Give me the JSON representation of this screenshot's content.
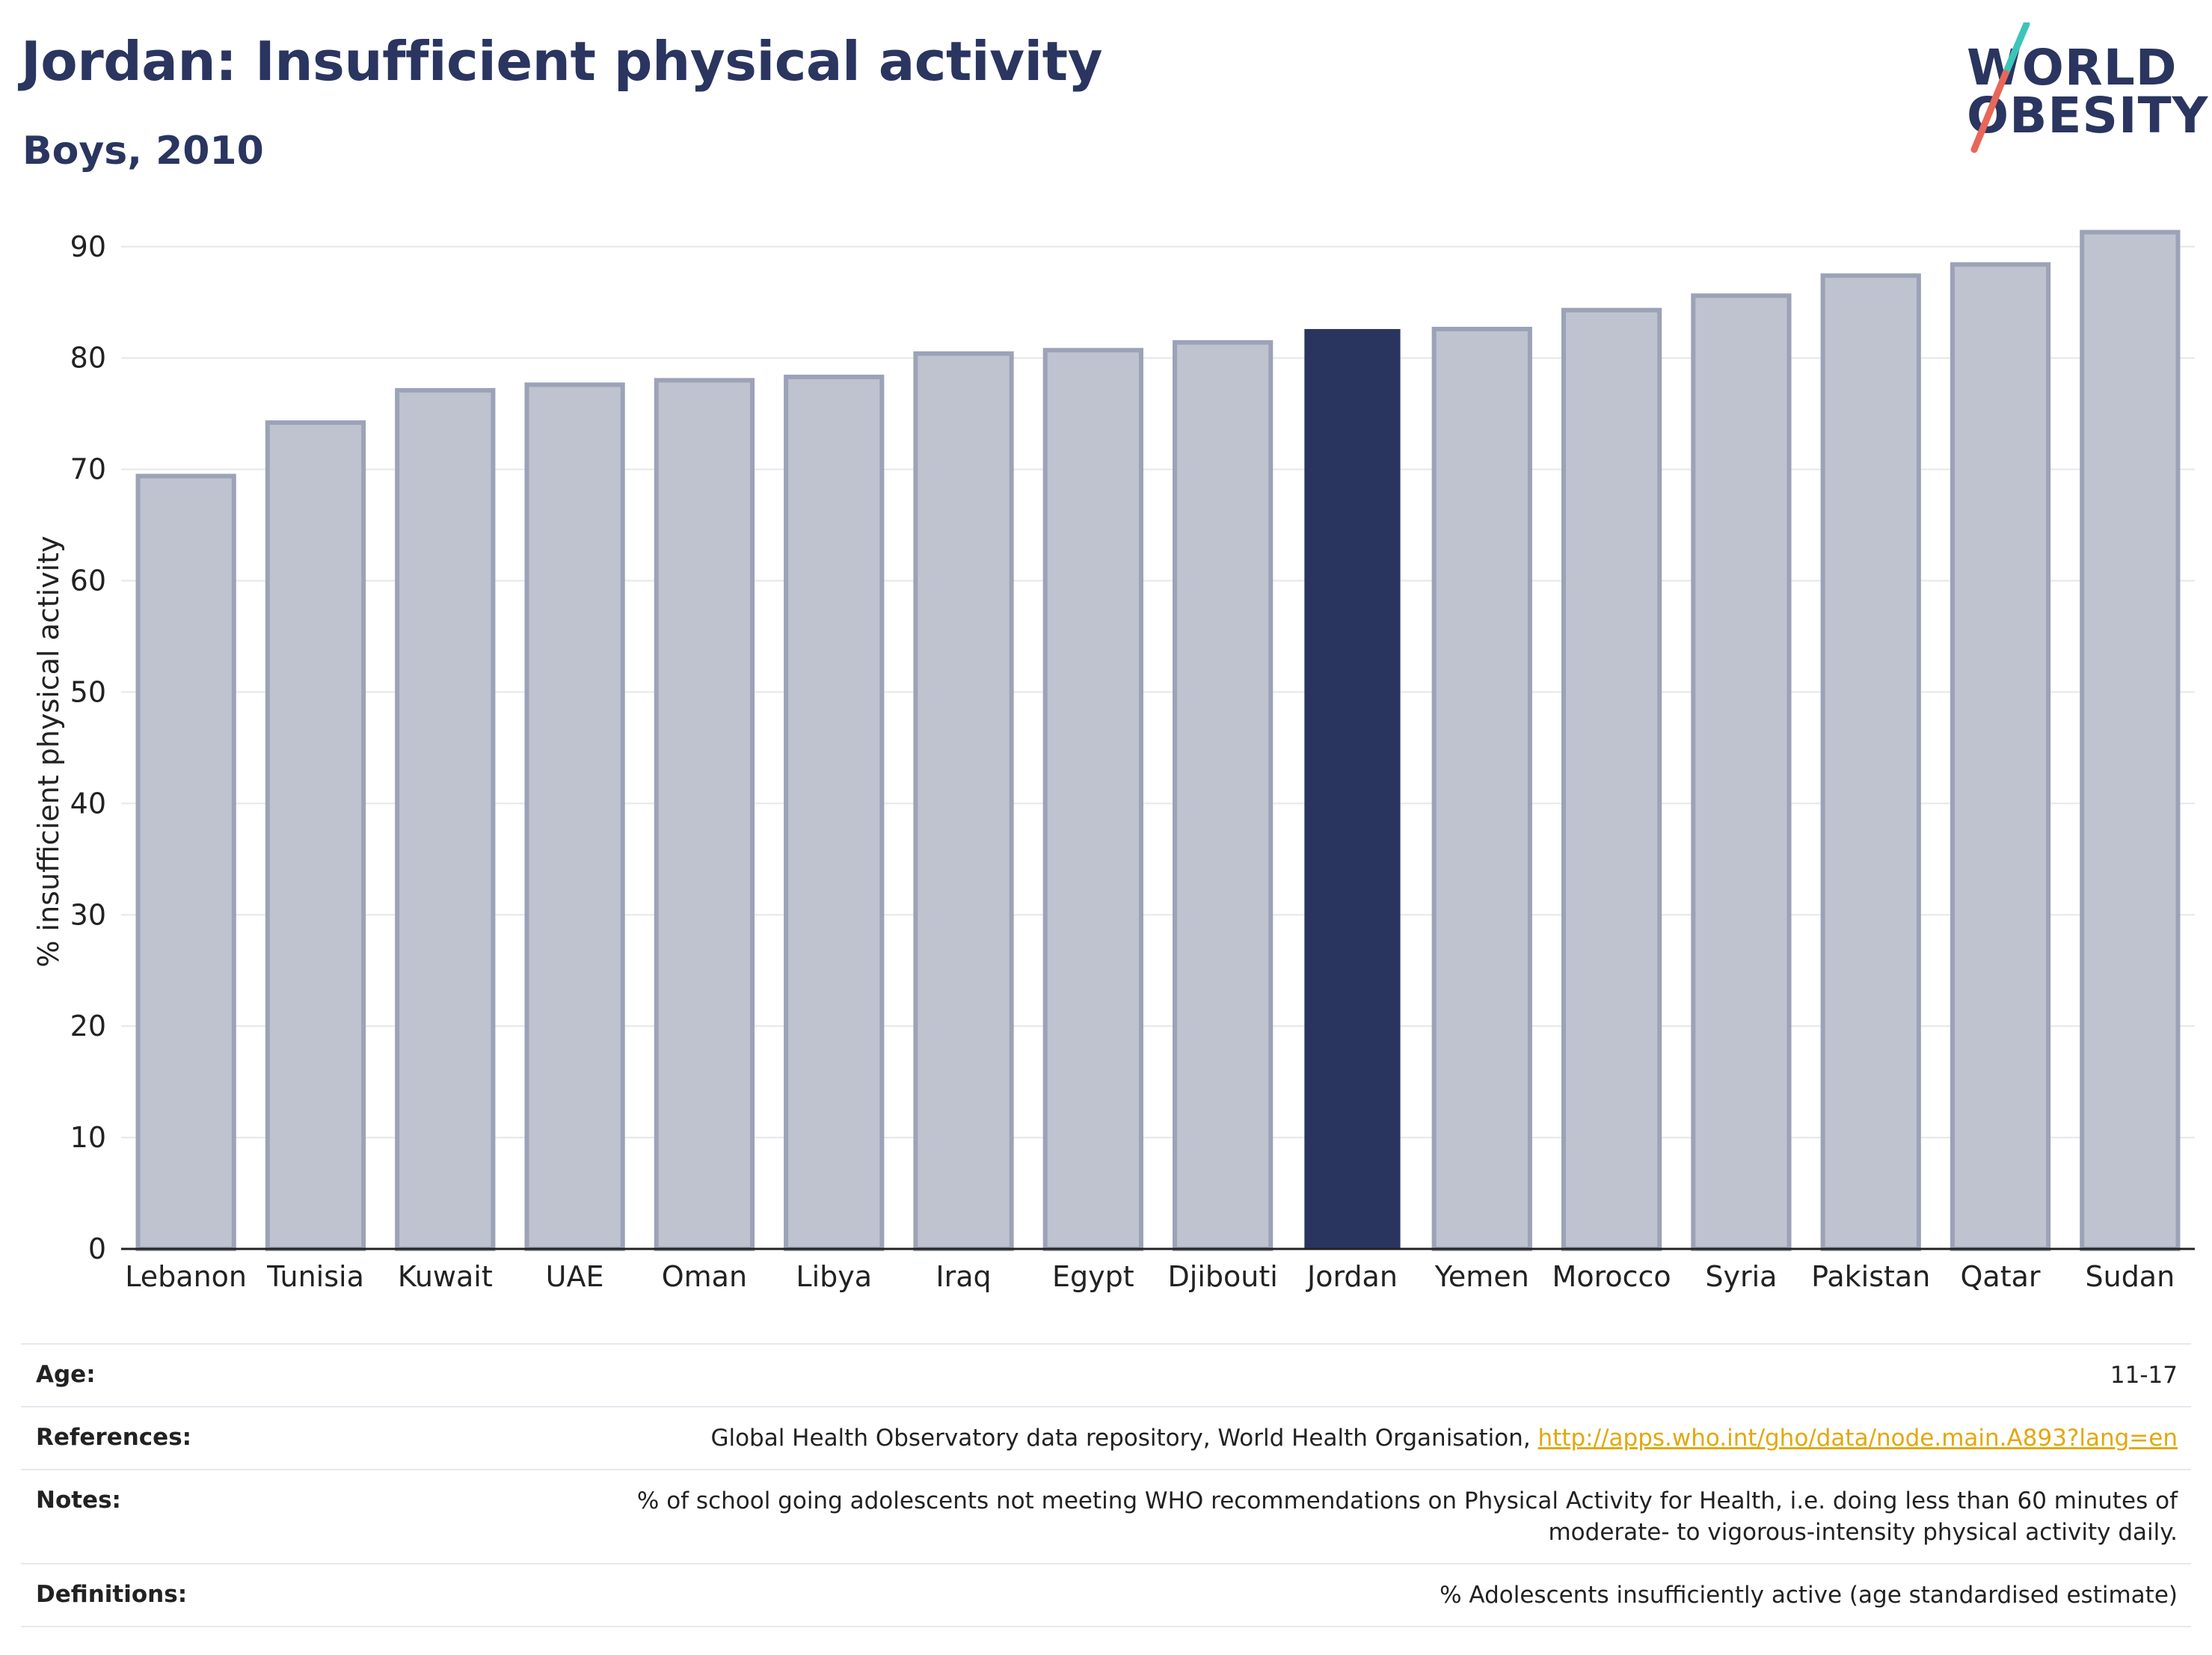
{
  "header": {
    "title": "Jordan: Insufficient physical activity",
    "subtitle": "Boys, 2010"
  },
  "logo": {
    "line1": "WORLD",
    "line2": "OBESITY",
    "accent_colors": [
      "#3cc5b8",
      "#e8675a"
    ]
  },
  "chart_data": {
    "type": "bar",
    "title": "Jordan: Insufficient physical activity",
    "subtitle": "Boys, 2010",
    "xlabel": "",
    "ylabel": "% insufficient physical activity",
    "ylim": [
      0,
      92
    ],
    "yticks": [
      0,
      10,
      20,
      30,
      40,
      50,
      60,
      70,
      80,
      90
    ],
    "grid": true,
    "categories": [
      "Lebanon",
      "Tunisia",
      "Kuwait",
      "UAE",
      "Oman",
      "Libya",
      "Iraq",
      "Egypt",
      "Djibouti",
      "Jordan",
      "Yemen",
      "Morocco",
      "Syria",
      "Pakistan",
      "Qatar",
      "Sudan"
    ],
    "values": [
      69.4,
      74.2,
      77.1,
      77.6,
      78.0,
      78.3,
      80.4,
      80.7,
      81.4,
      82.6,
      82.6,
      84.3,
      85.6,
      87.4,
      88.4,
      91.3
    ],
    "highlight": "Jordan",
    "colors": {
      "bar": "#bfc3cf",
      "bar_outline": "#9ca2b7",
      "highlight": "#29345f",
      "grid": "#e6e7ec",
      "axis": "#222222"
    }
  },
  "meta": {
    "age": {
      "label": "Age:",
      "value": "11-17"
    },
    "references": {
      "label": "References:",
      "value": "Global Health Observatory data repository, World Health Organisation, ",
      "link": "http://apps.who.int/gho/data/node.main.A893?lang=en"
    },
    "notes": {
      "label": "Notes:",
      "line1": "% of school going adolescents not meeting WHO recommendations on Physical Activity for Health, i.e. doing less than 60 minutes of",
      "line2": "moderate- to vigorous-intensity physical activity daily."
    },
    "definitions": {
      "label": "Definitions:",
      "value": "% Adolescents insufficiently active (age standardised estimate)"
    }
  }
}
